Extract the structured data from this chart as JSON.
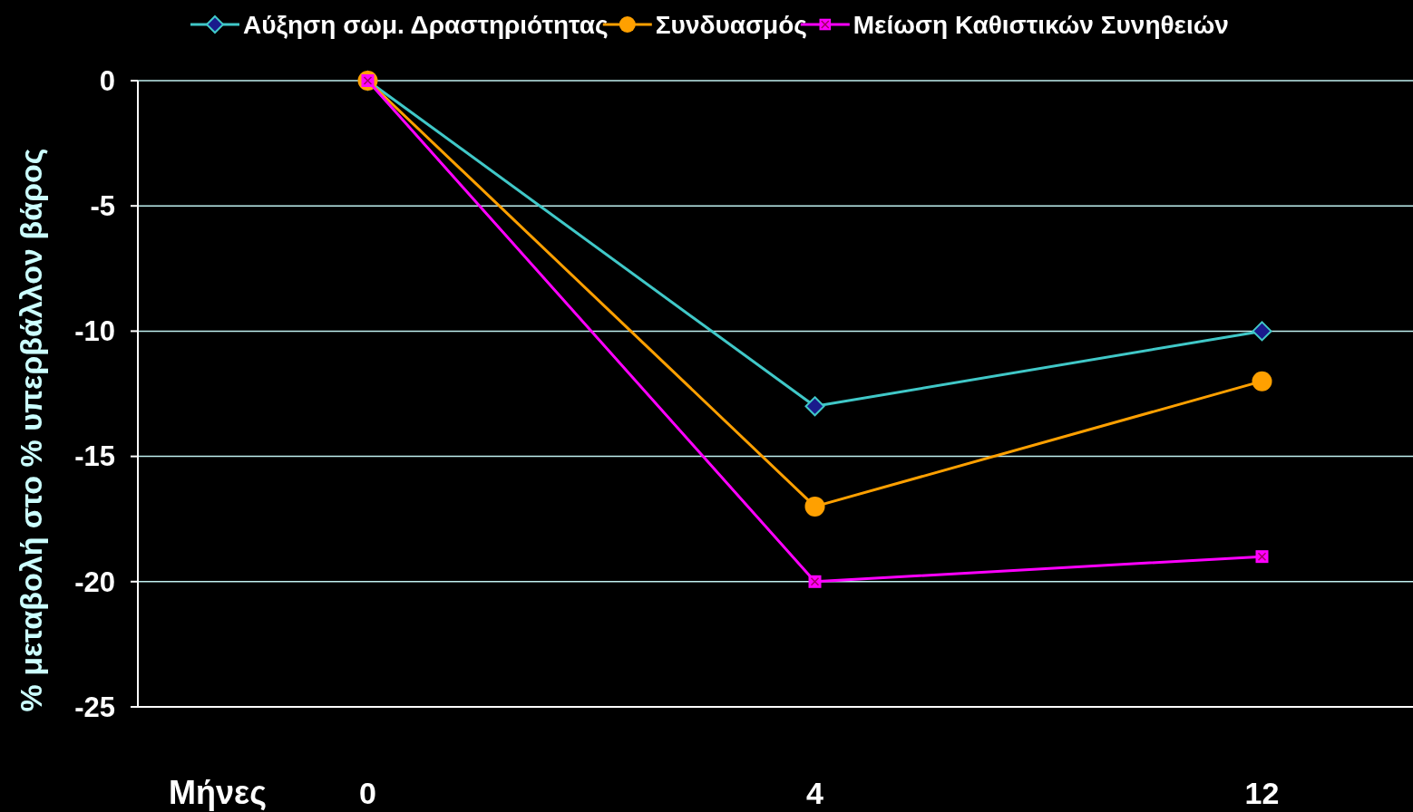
{
  "chart_data": {
    "type": "line",
    "xlabel": "Μήνες",
    "ylabel": "% μεταβολή στο % υπερβάλλον βάρος",
    "categories": [
      "0",
      "4",
      "12"
    ],
    "series": [
      {
        "name": "Αύξηση σωμ. Δραστηριότητας",
        "color": "#40c8c8",
        "marker": "diamond",
        "values": [
          0,
          -13,
          -10
        ]
      },
      {
        "name": "Συνδυασμός",
        "color": "#ffa000",
        "marker": "circle",
        "values": [
          0,
          -17,
          -12
        ]
      },
      {
        "name": "Μείωση Καθιστικών Συνηθειών",
        "color": "#ff00ff",
        "marker": "square",
        "values": [
          0,
          -20,
          -19
        ]
      }
    ],
    "ylim": [
      -25,
      0
    ],
    "yticks": [
      -25,
      -20,
      -15,
      -10,
      -5,
      0
    ],
    "grid": "y",
    "legend": "top"
  }
}
